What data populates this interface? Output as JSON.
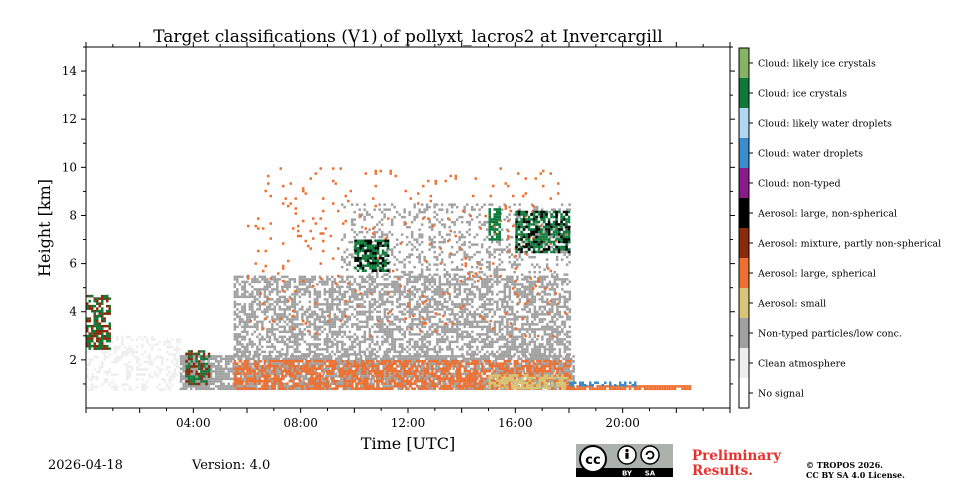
{
  "chart_data": {
    "type": "heatmap",
    "title": "Target classifications (V1) of pollyxt_lacros2 at Invercargill",
    "xlabel": "Time [UTC]",
    "ylabel": "Height [km]",
    "xlim": [
      0,
      24
    ],
    "ylim": [
      0,
      15
    ],
    "x_ticks": [
      {
        "value": 4,
        "label": "04:00"
      },
      {
        "value": 8,
        "label": "08:00"
      },
      {
        "value": 12,
        "label": "12:00"
      },
      {
        "value": 16,
        "label": "16:00"
      },
      {
        "value": 20,
        "label": "20:00"
      }
    ],
    "y_ticks": [
      {
        "value": 2,
        "label": "2"
      },
      {
        "value": 4,
        "label": "4"
      },
      {
        "value": 6,
        "label": "6"
      },
      {
        "value": 8,
        "label": "8"
      },
      {
        "value": 10,
        "label": "10"
      },
      {
        "value": 12,
        "label": "12"
      },
      {
        "value": 14,
        "label": "14"
      }
    ],
    "classes": [
      {
        "label": "No signal",
        "color": "#ffffff"
      },
      {
        "label": "Clean atmosphere",
        "color": "#eeeeee"
      },
      {
        "label": "Non-typed particles/low conc.",
        "color": "#a0a0a0"
      },
      {
        "label": "Aerosol: small",
        "color": "#d8c577"
      },
      {
        "label": "Aerosol: large, spherical",
        "color": "#ee7030"
      },
      {
        "label": "Aerosol: mixture, partly non-spherical",
        "color": "#8a2a0a"
      },
      {
        "label": "Aerosol: large, non-spherical",
        "color": "#000000"
      },
      {
        "label": "Cloud: non-typed",
        "color": "#8b1a8b"
      },
      {
        "label": "Cloud: water droplets",
        "color": "#3a8ccc"
      },
      {
        "label": "Cloud: likely water droplets",
        "color": "#b0d8f2"
      },
      {
        "label": "Cloud: ice crystals",
        "color": "#0d7a3a"
      },
      {
        "label": "Cloud: likely ice crystals",
        "color": "#85b563"
      }
    ],
    "regions": [
      {
        "class": "Clean atmosphere",
        "t0": 0.0,
        "t1": 3.5,
        "h0": 0.8,
        "h1": 3.0,
        "density": 0.35
      },
      {
        "class": "Non-typed particles/low conc.",
        "t0": 3.5,
        "t1": 18.2,
        "h0": 0.8,
        "h1": 2.2,
        "density": 0.8
      },
      {
        "class": "Non-typed particles/low conc.",
        "t0": 5.5,
        "t1": 18.0,
        "h0": 2.2,
        "h1": 5.5,
        "density": 0.55
      },
      {
        "class": "Non-typed particles/low conc.",
        "t0": 9.5,
        "t1": 18.0,
        "h0": 5.5,
        "h1": 8.5,
        "density": 0.25
      },
      {
        "class": "Aerosol: large, spherical",
        "t0": 5.5,
        "t1": 18.0,
        "h0": 0.8,
        "h1": 2.0,
        "density": 0.6
      },
      {
        "class": "Aerosol: large, spherical",
        "t0": 6.0,
        "t1": 18.0,
        "h0": 3.0,
        "h1": 10.0,
        "density": 0.03
      },
      {
        "class": "Aerosol: small",
        "t0": 15.0,
        "t1": 18.0,
        "h0": 0.8,
        "h1": 1.4,
        "density": 0.6
      },
      {
        "class": "Aerosol: large, spherical",
        "t0": 17.9,
        "t1": 22.5,
        "h0": 0.8,
        "h1": 0.95,
        "density": 0.9
      },
      {
        "class": "Cloud: water droplets",
        "t0": 18.0,
        "t1": 20.5,
        "h0": 0.9,
        "h1": 1.1,
        "density": 0.5
      },
      {
        "class": "Aerosol: mixture, partly non-spherical",
        "t0": 0.0,
        "t1": 0.9,
        "h0": 2.5,
        "h1": 4.7,
        "density": 0.55
      },
      {
        "class": "Cloud: ice crystals",
        "t0": 0.0,
        "t1": 0.9,
        "h0": 2.5,
        "h1": 4.7,
        "density": 0.3
      },
      {
        "class": "Cloud: ice crystals",
        "t0": 10.0,
        "t1": 11.3,
        "h0": 5.7,
        "h1": 7.0,
        "density": 0.6
      },
      {
        "class": "Aerosol: large, non-spherical",
        "t0": 10.0,
        "t1": 11.3,
        "h0": 5.7,
        "h1": 7.0,
        "density": 0.3
      },
      {
        "class": "Cloud: ice crystals",
        "t0": 15.0,
        "t1": 15.4,
        "h0": 7.0,
        "h1": 8.3,
        "density": 0.7
      },
      {
        "class": "Cloud: ice crystals",
        "t0": 16.0,
        "t1": 18.0,
        "h0": 6.5,
        "h1": 8.2,
        "density": 0.6
      },
      {
        "class": "Aerosol: large, non-spherical",
        "t0": 16.0,
        "t1": 18.0,
        "h0": 6.5,
        "h1": 8.2,
        "density": 0.25
      },
      {
        "class": "Cloud: ice crystals",
        "t0": 3.7,
        "t1": 4.6,
        "h0": 1.0,
        "h1": 2.4,
        "density": 0.5
      },
      {
        "class": "Aerosol: mixture, partly non-spherical",
        "t0": 3.7,
        "t1": 4.6,
        "h0": 1.0,
        "h1": 2.4,
        "density": 0.2
      }
    ]
  },
  "footer": {
    "date": "2026-04-18",
    "version": "Version: 4.0",
    "preliminary_line1": "Preliminary",
    "preliminary_line2": "Results.",
    "copyright_line1": "© TROPOS 2026.",
    "copyright_line2": "CC BY SA 4.0 License.",
    "license_badge": {
      "main": "cc",
      "by": "BY",
      "sa": "SA"
    }
  }
}
